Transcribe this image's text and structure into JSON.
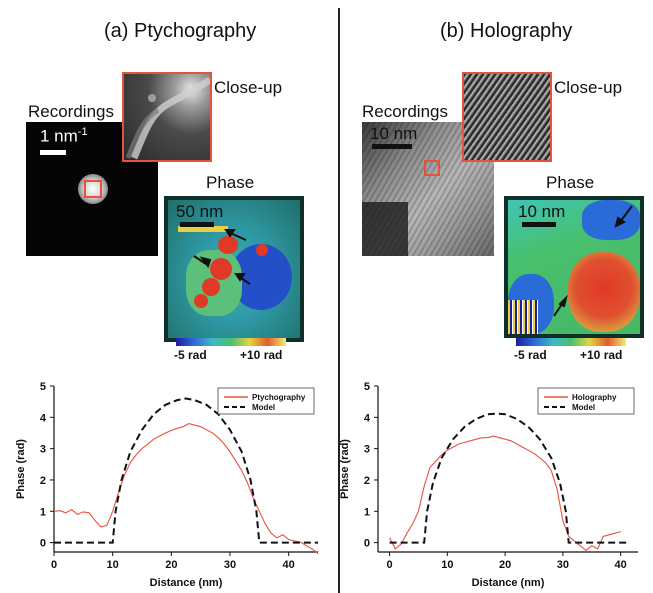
{
  "panels": {
    "a": {
      "title": "(a) Ptychography",
      "recordings_label": "Recordings",
      "closeup_label": "Close-up",
      "phase_label": "Phase",
      "recording_scale": "1 nm",
      "recording_scale_sup": "-1",
      "phase_scale": "50 nm",
      "colorbar_min": "-5 rad",
      "colorbar_max": "+10 rad"
    },
    "b": {
      "title": "(b) Holography",
      "recordings_label": "Recordings",
      "closeup_label": "Close-up",
      "phase_label": "Phase",
      "recording_scale": "10 nm",
      "phase_scale": "10 nm",
      "colorbar_min": "-5 rad",
      "colorbar_max": "+10 rad"
    }
  },
  "colors": {
    "measured": "#e5533d",
    "model": "#111111",
    "closeup_frame": "#e5533d",
    "phase_frame": "#0e2f2a"
  },
  "chart_data": [
    {
      "type": "line",
      "xlabel": "Distance (nm)",
      "ylabel": "Phase (rad)",
      "xlim": [
        0,
        45
      ],
      "ylim": [
        -0.3,
        5
      ],
      "xticks": [
        0,
        10,
        20,
        30,
        40
      ],
      "yticks": [
        0,
        1,
        2,
        3,
        4,
        5
      ],
      "legend_position": "top-right",
      "series": [
        {
          "name": "Ptychography",
          "style": "solid",
          "x": [
            0,
            1,
            2,
            3,
            4,
            5,
            6,
            7,
            8,
            9,
            10,
            11,
            12,
            13,
            14,
            15,
            16,
            17,
            18,
            19,
            20,
            21,
            22,
            23,
            24,
            25,
            26,
            27,
            28,
            29,
            30,
            31,
            32,
            33,
            34,
            35,
            36,
            37,
            38,
            39,
            40,
            41,
            42,
            43,
            44,
            45
          ],
          "y": [
            1.0,
            1.02,
            0.95,
            1.05,
            0.9,
            0.98,
            0.95,
            0.7,
            0.5,
            0.55,
            1.0,
            1.6,
            2.15,
            2.55,
            2.8,
            3.0,
            3.15,
            3.3,
            3.4,
            3.5,
            3.58,
            3.65,
            3.7,
            3.8,
            3.75,
            3.7,
            3.6,
            3.5,
            3.35,
            3.15,
            2.9,
            2.6,
            2.3,
            1.9,
            1.4,
            1.0,
            0.6,
            0.3,
            0.15,
            0.25,
            0.1,
            0.05,
            0.02,
            -0.1,
            -0.2,
            -0.35
          ]
        },
        {
          "name": "Model",
          "style": "dashed",
          "x": [
            0,
            10,
            10.5,
            11.5,
            13,
            15,
            17,
            19,
            21,
            22.5,
            24,
            26,
            28,
            30,
            32,
            33.5,
            34.5,
            35,
            45
          ],
          "y": [
            0,
            0,
            1.0,
            2.0,
            2.9,
            3.6,
            4.1,
            4.4,
            4.55,
            4.6,
            4.55,
            4.4,
            4.1,
            3.6,
            2.9,
            2.0,
            1.0,
            0,
            0
          ]
        }
      ]
    },
    {
      "type": "line",
      "xlabel": "Distance (nm)",
      "ylabel": "Phase (rad)",
      "xlim": [
        -2,
        43
      ],
      "ylim": [
        -0.3,
        5
      ],
      "xticks": [
        0,
        10,
        20,
        30,
        40
      ],
      "yticks": [
        0,
        1,
        2,
        3,
        4,
        5
      ],
      "legend_position": "top-right",
      "series": [
        {
          "name": "Holography",
          "style": "solid",
          "x": [
            0,
            1,
            2,
            3,
            4,
            5,
            6,
            7,
            8,
            9,
            10,
            11,
            12,
            13,
            14,
            15,
            16,
            17,
            18,
            19,
            20,
            21,
            22,
            23,
            24,
            25,
            26,
            27,
            28,
            29,
            30,
            31,
            32,
            33,
            34,
            35,
            36,
            37,
            38,
            39,
            40
          ],
          "y": [
            0.15,
            -0.2,
            -0.05,
            0.3,
            0.6,
            1.0,
            1.8,
            2.4,
            2.6,
            2.8,
            2.95,
            3.05,
            3.15,
            3.2,
            3.25,
            3.3,
            3.35,
            3.35,
            3.4,
            3.35,
            3.3,
            3.25,
            3.15,
            3.05,
            2.95,
            2.85,
            2.7,
            2.55,
            2.3,
            1.7,
            0.7,
            0.2,
            0.05,
            -0.1,
            -0.25,
            -0.1,
            -0.2,
            0.2,
            0.25,
            0.3,
            0.35
          ]
        },
        {
          "name": "Model",
          "style": "dashed",
          "x": [
            0,
            6,
            6.5,
            7.5,
            9,
            11,
            13,
            15,
            17,
            18.5,
            20,
            22,
            24,
            26,
            28,
            29.5,
            30.5,
            31,
            41
          ],
          "y": [
            0,
            0,
            1.0,
            1.9,
            2.7,
            3.3,
            3.7,
            3.95,
            4.1,
            4.12,
            4.1,
            3.95,
            3.7,
            3.3,
            2.7,
            1.9,
            1.0,
            0,
            0
          ]
        }
      ]
    }
  ]
}
